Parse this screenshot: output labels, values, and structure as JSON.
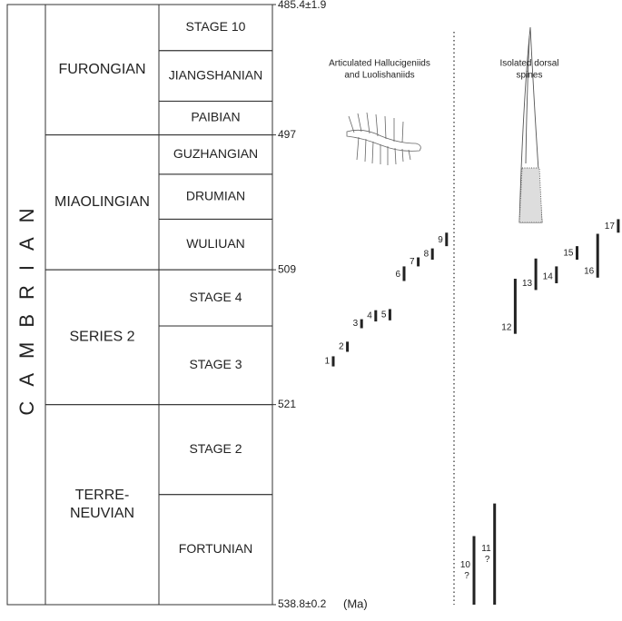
{
  "system": "CAMBRIAN",
  "unit": "(Ma)",
  "ylim": [
    485.4,
    538.8
  ],
  "ticks": [
    {
      "value": 485.4,
      "label": "485.4±1.9"
    },
    497,
    509,
    521,
    {
      "value": 538.8,
      "label": "538.8±0.2"
    }
  ],
  "series": [
    {
      "name": [
        "FURONGIAN"
      ],
      "top": 485.4,
      "base": 497
    },
    {
      "name": [
        "MIAOLINGIAN"
      ],
      "top": 497,
      "base": 509
    },
    {
      "name": [
        "SERIES 2"
      ],
      "top": 509,
      "base": 521
    },
    {
      "name": [
        "TERRE-",
        "NEUVIAN"
      ],
      "top": 521,
      "base": 538.8
    }
  ],
  "stages": [
    {
      "name": "STAGE 10",
      "top": 485.4,
      "base": 489.5
    },
    {
      "name": "JIANGSHANIAN",
      "top": 489.5,
      "base": 494
    },
    {
      "name": "PAIBIAN",
      "top": 494,
      "base": 497
    },
    {
      "name": "GUZHANGIAN",
      "top": 497,
      "base": 500.5
    },
    {
      "name": "DRUMIAN",
      "top": 500.5,
      "base": 504.5
    },
    {
      "name": "WULIUAN",
      "top": 504.5,
      "base": 509
    },
    {
      "name": "STAGE 4",
      "top": 509,
      "base": 514
    },
    {
      "name": "STAGE 3",
      "top": 514,
      "base": 521
    },
    {
      "name": "STAGE 2",
      "top": 521,
      "base": 529
    },
    {
      "name": "FORTUNIAN",
      "top": 529,
      "base": 538.8
    }
  ],
  "groups": [
    {
      "title": [
        "Articulated Hallucigeniids",
        "and Luolishaniids"
      ],
      "ranges": [
        {
          "label": "1",
          "top": 516.7,
          "base": 517.6
        },
        {
          "label": "2",
          "top": 515.4,
          "base": 516.3
        },
        {
          "label": "3",
          "top": 513.4,
          "base": 514.2
        },
        {
          "label": "4",
          "top": 512.6,
          "base": 513.6
        },
        {
          "label": "5",
          "top": 512.5,
          "base": 513.5
        },
        {
          "label": "6",
          "top": 508.7,
          "base": 510.0
        },
        {
          "label": "7",
          "top": 507.9,
          "base": 508.7
        },
        {
          "label": "8",
          "top": 507.1,
          "base": 508.1
        },
        {
          "label": "9",
          "top": 505.7,
          "base": 506.9
        }
      ]
    },
    {
      "title": [
        "Isolated dorsal",
        "spines"
      ],
      "ranges": [
        {
          "label": "10",
          "query": "?",
          "top": 532.7,
          "base": 538.8
        },
        {
          "label": "11",
          "query": "?",
          "top": 529.8,
          "base": 538.8
        },
        {
          "label": "12",
          "top": 509.8,
          "base": 514.7
        },
        {
          "label": "13",
          "top": 508.0,
          "base": 510.8
        },
        {
          "label": "14",
          "top": 508.7,
          "base": 510.2
        },
        {
          "label": "15",
          "top": 506.9,
          "base": 508.1
        },
        {
          "label": "16",
          "top": 505.8,
          "base": 509.7
        },
        {
          "label": "17",
          "top": 504.5,
          "base": 505.7
        }
      ]
    }
  ]
}
